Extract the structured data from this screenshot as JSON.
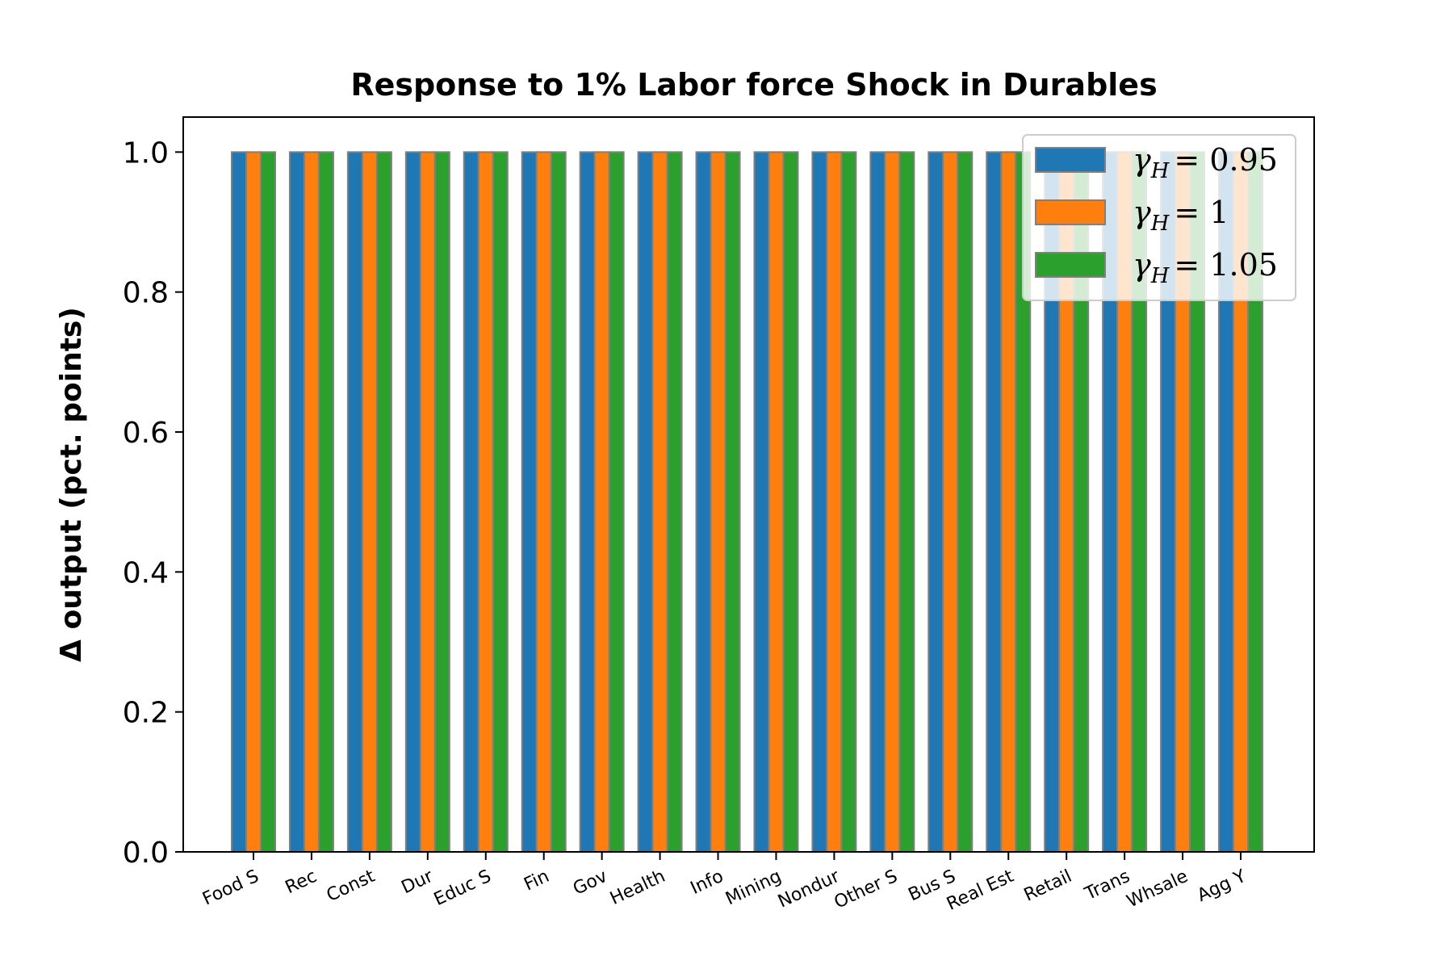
{
  "chart_data": {
    "type": "bar",
    "title": "Response to 1% Labor force Shock in Durables",
    "xlabel": "",
    "ylabel": "Δ output (pct. points)",
    "ylim": [
      0,
      1.05
    ],
    "yticks": [
      0.0,
      0.2,
      0.4,
      0.6,
      0.8,
      1.0
    ],
    "ytick_labels": [
      "0.0",
      "0.2",
      "0.4",
      "0.6",
      "0.8",
      "1.0"
    ],
    "categories": [
      "Food S",
      "Rec",
      "Const",
      "Dur",
      "Educ S",
      "Fin",
      "Gov",
      "Health",
      "Info",
      "Mining",
      "Nondur",
      "Other S",
      "Bus S",
      "Real Est",
      "Retail",
      "Trans",
      "Whsale",
      "Agg Y"
    ],
    "series": [
      {
        "name": "γH = 0.95",
        "legend_symbol": "γ",
        "legend_sub": "H",
        "legend_value": "= 0.95",
        "color": "#1f77b4",
        "values": [
          1,
          1,
          1,
          1,
          1,
          1,
          1,
          1,
          1,
          1,
          1,
          1,
          1,
          1,
          1,
          1,
          1,
          1
        ]
      },
      {
        "name": "γH = 1",
        "legend_symbol": "γ",
        "legend_sub": "H",
        "legend_value": "= 1",
        "color": "#ff7f0e",
        "values": [
          1,
          1,
          1,
          1,
          1,
          1,
          1,
          1,
          1,
          1,
          1,
          1,
          1,
          1,
          1,
          1,
          1,
          1
        ]
      },
      {
        "name": "γH = 1.05",
        "legend_symbol": "γ",
        "legend_sub": "H",
        "legend_value": "= 1.05",
        "color": "#2ca02c",
        "values": [
          1,
          1,
          1,
          1,
          1,
          1,
          1,
          1,
          1,
          1,
          1,
          1,
          1,
          1,
          1,
          1,
          1,
          1
        ]
      }
    ],
    "bar_edge_color": "#808080",
    "grid": false,
    "legend_position": "top-right"
  }
}
